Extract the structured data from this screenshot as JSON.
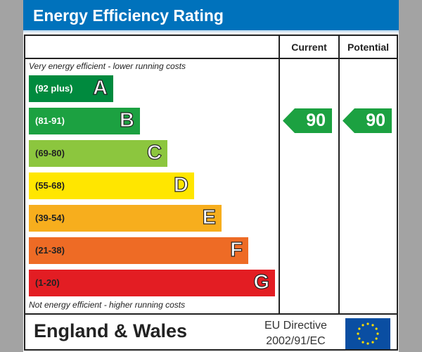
{
  "title": "Energy Efficiency Rating",
  "columns": {
    "current": "Current",
    "potential": "Potential"
  },
  "notes": {
    "top": "Very energy efficient - lower running costs",
    "bottom": "Not energy efficient - higher running costs"
  },
  "footer": {
    "region": "England & Wales",
    "directive_line1": "EU Directive",
    "directive_line2": "2002/91/EC"
  },
  "chart_data": {
    "type": "bar",
    "title": "Energy Efficiency Rating",
    "bands": [
      {
        "letter": "A",
        "range": "(92 plus)",
        "color": "#008a3e",
        "text": "#fff"
      },
      {
        "letter": "B",
        "range": "(81-91)",
        "color": "#1ca141",
        "text": "#fff"
      },
      {
        "letter": "C",
        "range": "(69-80)",
        "color": "#8cc63e",
        "text": "#222"
      },
      {
        "letter": "D",
        "range": "(55-68)",
        "color": "#ffe600",
        "text": "#222"
      },
      {
        "letter": "E",
        "range": "(39-54)",
        "color": "#f7ae1d",
        "text": "#222"
      },
      {
        "letter": "F",
        "range": "(21-38)",
        "color": "#ee6b25",
        "text": "#222"
      },
      {
        "letter": "G",
        "range": "(1-20)",
        "color": "#e31d23",
        "text": "#222"
      }
    ],
    "current": {
      "value": "90",
      "band": "B"
    },
    "potential": {
      "value": "90",
      "band": "B"
    }
  }
}
